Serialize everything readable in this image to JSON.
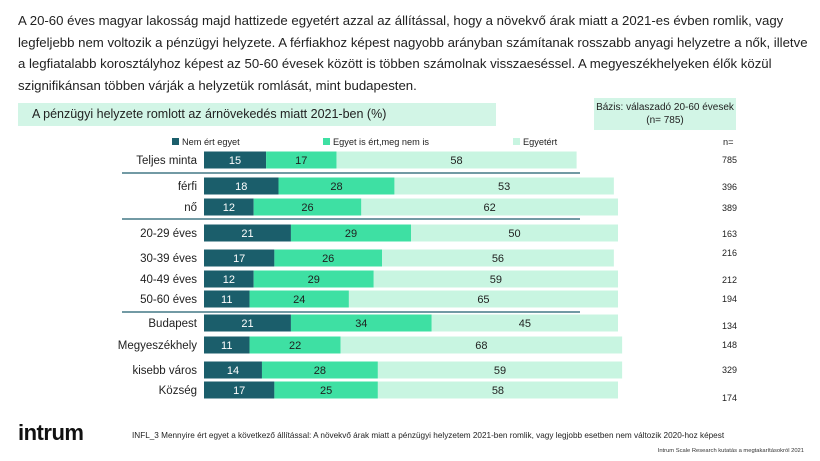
{
  "intro_text": "A 20-60 éves magyar lakosság majd hattizede egyetért azzal az állítással, hogy a növekvő árak miatt a 2021-es évben romlik, vagy legfeljebb nem voltozik a pénzügyi helyzete. A férfiakhoz képest nagyobb arányban számítanak rosszabb anyagi helyzetre a nők, illetve a legfiatalabb korosztályhoz képest az 50-60 évesek között is többen számolnak visszaeséssel. A megyeszékhelyeken élők közül szignifikánsan többen várják a helyzetük romlását, mint budapesten.",
  "base_line1": "Bázis: válaszadó 20-60 évesek",
  "base_line2": "(n= 785)",
  "logo": "intrum",
  "footnote": "INFL_3 Mennyire ért egyet a következő állítással: A növekvő árak miatt a pénzügyi helyzetem 2021-ben romlik, vagy legjobb esetben nem változik 2020-hoz képest",
  "source": "Intrum Scale Research kutatás a megtakarításokról 2021",
  "colors": {
    "series1": "#1b5e6b",
    "series2": "#3ee0a3",
    "series3": "#c8f5e1",
    "line": "#1f5d6e"
  },
  "chart_data": {
    "type": "bar",
    "orientation": "horizontal",
    "stacked": true,
    "title": "A pénzügyi helyzete romlott az árnövekedés miatt 2021-ben (%)",
    "n_header": "n=",
    "series": [
      {
        "name": "Nem ért egyet",
        "values": [
          15,
          18,
          12,
          21,
          17,
          12,
          11,
          21,
          11,
          14,
          17
        ]
      },
      {
        "name": "Egyet is ért,meg nem is",
        "values": [
          17,
          28,
          26,
          29,
          26,
          29,
          24,
          34,
          22,
          28,
          25
        ]
      },
      {
        "name": "Egyetért",
        "values": [
          58,
          53,
          62,
          50,
          56,
          59,
          65,
          45,
          68,
          59,
          58
        ]
      }
    ],
    "categories": [
      "Teljes minta",
      "férfi",
      "nő",
      "20-29 éves",
      "30-39 éves",
      "40-49 éves",
      "50-60 éves",
      "Budapest",
      "Megyeszékhely",
      "kisebb város",
      "Község"
    ],
    "n": [
      "785",
      "396",
      "389",
      "163",
      "216",
      "212",
      "194",
      "134",
      "148",
      "329",
      "174"
    ],
    "groups": [
      [
        0
      ],
      [
        1,
        2
      ],
      [
        3,
        4,
        5,
        6
      ],
      [
        7,
        8,
        9,
        10
      ]
    ],
    "xlim": [
      0,
      100
    ]
  }
}
